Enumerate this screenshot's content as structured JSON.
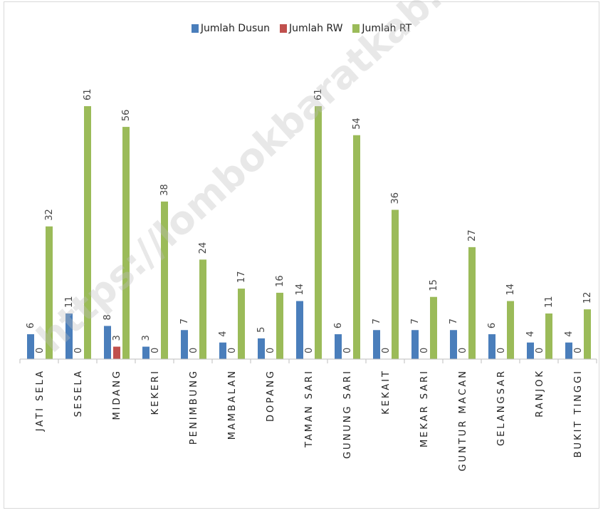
{
  "chart_data": {
    "type": "bar",
    "categories": [
      "JATI SELA",
      "SESELA",
      "MIDANG",
      "KEKERI",
      "PENIMBUNG",
      "MAMBALAN",
      "DOPANG",
      "TAMAN SARI",
      "GUNUNG SARI",
      "KEKAIT",
      "MEKAR SARI",
      "GUNTUR MACAN",
      "GELANGSAR",
      "RANJOK",
      "BUKIT TINGGI"
    ],
    "series": [
      {
        "name": "Jumlah Dusun",
        "color": "#4a7ebb",
        "values": [
          6,
          11,
          8,
          3,
          7,
          4,
          5,
          14,
          6,
          7,
          7,
          7,
          6,
          4,
          4
        ]
      },
      {
        "name": "Jumlah RW",
        "color": "#c0504d",
        "values": [
          0,
          0,
          3,
          0,
          0,
          0,
          0,
          0,
          0,
          0,
          0,
          0,
          0,
          0,
          0
        ]
      },
      {
        "name": "Jumlah RT",
        "color": "#9bbb59",
        "values": [
          32,
          61,
          56,
          38,
          24,
          17,
          16,
          61,
          54,
          36,
          15,
          27,
          14,
          11,
          12
        ]
      }
    ],
    "ylim": [
      0,
      61
    ],
    "legend_position": "top-center",
    "grid": false,
    "data_labels": true,
    "title": "",
    "xlabel": "",
    "ylabel": ""
  },
  "watermark": "https://lombokbaratkab.bps.go.id"
}
